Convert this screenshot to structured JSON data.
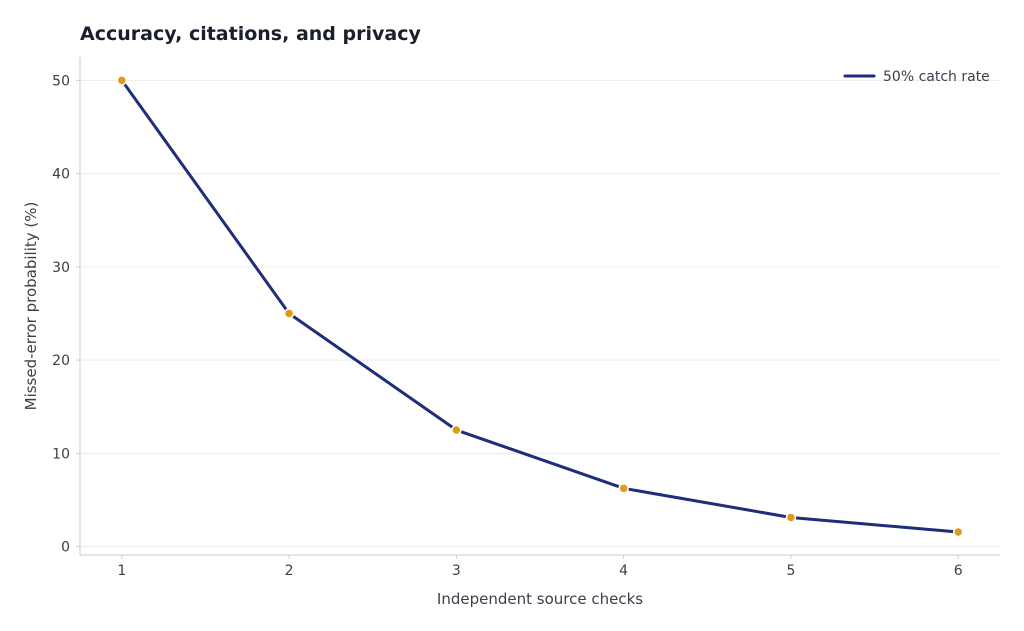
{
  "chart_data": {
    "type": "line",
    "title": "Accuracy, citations, and privacy",
    "xlabel": "Independent source checks",
    "ylabel": "Missed-error probability (%)",
    "x": [
      1,
      2,
      3,
      4,
      5,
      6
    ],
    "xlim": [
      0.75,
      6.25
    ],
    "ylim": [
      -0.9,
      52.5
    ],
    "xticks": [
      1,
      2,
      3,
      4,
      5,
      6
    ],
    "yticks": [
      0,
      10,
      20,
      30,
      40,
      50
    ],
    "grid": "horizontal",
    "legend_position": "top-right",
    "series": [
      {
        "name": "50% catch rate",
        "values": [
          50,
          25,
          12.5,
          6.25,
          3.125,
          1.5625
        ],
        "line_color": "#1f2d7a",
        "marker_color": "#e09a1a"
      }
    ],
    "colors": {
      "grid": "#ececec",
      "axis": "#cccccc",
      "text": "#3a3f4b",
      "title": "#1a1f2e"
    }
  }
}
